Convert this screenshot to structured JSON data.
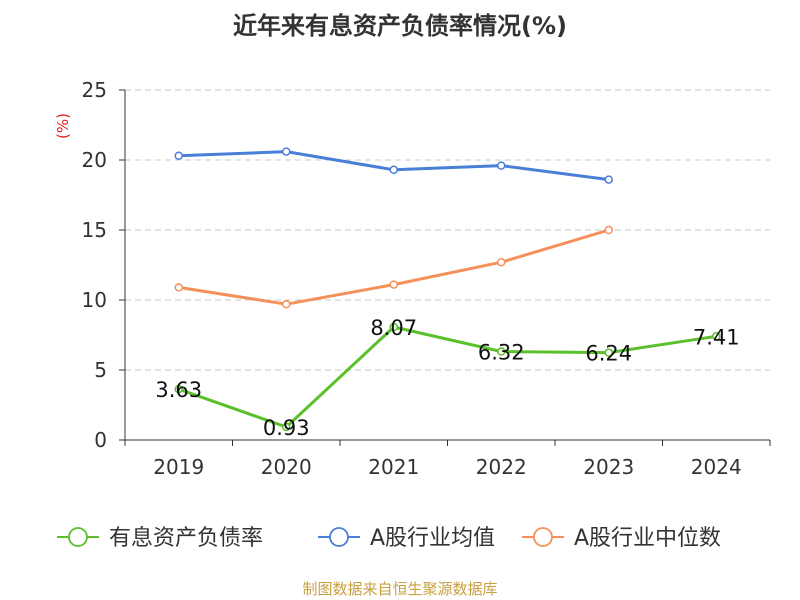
{
  "chart_data": {
    "type": "line",
    "title": "近年来有息资产负债率情况(%)",
    "ylabel": "(%)",
    "ylim": [
      0,
      25
    ],
    "yticks": [
      0,
      5,
      10,
      15,
      20,
      25
    ],
    "categories": [
      "2019",
      "2020",
      "2021",
      "2022",
      "2023",
      "2024"
    ],
    "grid": true,
    "legend_position": "bottom",
    "series": [
      {
        "name": "有息资产负债率",
        "color": "#5ac02c",
        "values": [
          3.63,
          0.93,
          8.07,
          6.32,
          6.24,
          7.41
        ],
        "labels": [
          "3.63",
          "0.93",
          "8.07",
          "6.32",
          "6.24",
          "7.41"
        ]
      },
      {
        "name": "A股行业均值",
        "color": "#4a7fd8",
        "values": [
          20.3,
          20.6,
          19.3,
          19.6,
          18.6,
          null
        ]
      },
      {
        "name": "A股行业中位数",
        "color": "#f5905a",
        "values": [
          10.9,
          9.7,
          11.1,
          12.7,
          15.0,
          null
        ]
      }
    ],
    "source": "制图数据来自恒生聚源数据库"
  }
}
